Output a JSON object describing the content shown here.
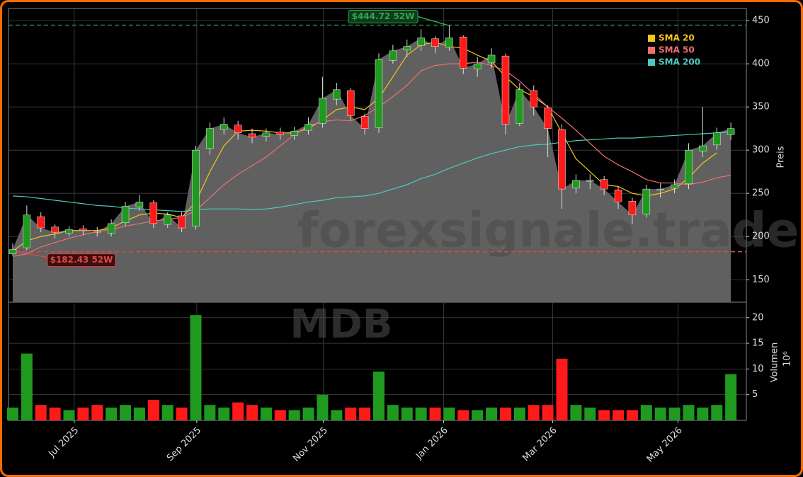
{
  "chart_data": {
    "type": "candlestick",
    "watermark": "forexsignale.trade",
    "symbol": "MDB",
    "y_label": "Preis",
    "x": [
      0.3,
      1.3,
      2.3,
      3.3,
      4.3,
      5.3,
      6.3,
      7.3,
      8.3,
      9.3,
      10.3,
      11.3,
      12.3,
      13.3,
      14.3,
      15.3,
      16.3,
      17.3,
      18.3,
      19.3,
      20.3,
      21.3,
      22.3,
      23.3,
      24.3,
      25.3,
      26.3,
      27.3,
      28.3,
      29.3,
      30.3,
      31.3,
      32.3,
      33.3,
      34.3,
      35.3,
      36.3,
      37.3,
      38.3,
      39.3,
      40.3,
      41.3,
      42.3,
      43.3,
      44.3,
      45.3,
      46.3,
      47.3,
      48.3,
      49.3,
      50.3,
      51.3
    ],
    "open": [
      180,
      187,
      223,
      211,
      204,
      209,
      206,
      204,
      216,
      234,
      239,
      214,
      224,
      212,
      302,
      324,
      329,
      319,
      316,
      321,
      317,
      323,
      331,
      359,
      369,
      339,
      326,
      404,
      416,
      421,
      429,
      419,
      431,
      394,
      401,
      409,
      331,
      369,
      349,
      324,
      256,
      264,
      266,
      254,
      241,
      226,
      254,
      256,
      261,
      299,
      306,
      318
    ],
    "high": [
      192,
      236,
      228,
      214,
      212,
      213,
      211,
      220,
      240,
      248,
      242,
      228,
      228,
      305,
      332,
      338,
      334,
      325,
      325,
      326,
      327,
      338,
      385,
      378,
      372,
      342,
      412,
      422,
      428,
      440,
      432,
      445,
      433,
      408,
      418,
      412,
      378,
      375,
      352,
      330,
      272,
      272,
      270,
      258,
      245,
      260,
      262,
      266,
      308,
      350,
      326,
      332
    ],
    "low": [
      178,
      184,
      205,
      198,
      200,
      202,
      200,
      200,
      212,
      230,
      210,
      210,
      205,
      208,
      295,
      318,
      312,
      308,
      310,
      312,
      312,
      318,
      326,
      352,
      335,
      318,
      320,
      400,
      408,
      415,
      412,
      415,
      388,
      385,
      395,
      318,
      328,
      340,
      292,
      232,
      250,
      255,
      248,
      232,
      215,
      222,
      245,
      250,
      255,
      292,
      300,
      312
    ],
    "close": [
      185,
      225,
      210,
      205,
      208,
      207,
      205,
      215,
      235,
      240,
      215,
      225,
      210,
      300,
      325,
      330,
      320,
      315,
      320,
      318,
      322,
      330,
      360,
      370,
      340,
      325,
      405,
      415,
      420,
      430,
      420,
      430,
      395,
      400,
      410,
      330,
      370,
      350,
      325,
      255,
      265,
      265,
      255,
      240,
      225,
      255,
      255,
      260,
      300,
      305,
      320,
      325
    ],
    "up_color": "#1f9a1f",
    "down_color": "#ff1a1a",
    "series": [
      {
        "name": "SMA 20",
        "color": "#f5c518",
        "values": [
          183,
          195,
          200,
          203,
          207,
          207,
          207,
          210,
          218,
          225,
          227,
          226,
          222,
          240,
          275,
          305,
          322,
          323,
          322,
          320,
          320,
          325,
          335,
          347,
          350,
          347,
          360,
          385,
          410,
          422,
          425,
          420,
          418,
          410,
          403,
          385,
          370,
          362,
          350,
          320,
          290,
          275,
          260,
          258,
          250,
          247,
          250,
          255,
          268,
          285,
          297,
          null
        ]
      },
      {
        "name": "SMA 50",
        "color": "#f07070",
        "values": [
          177,
          180,
          188,
          193,
          198,
          202,
          206,
          208,
          212,
          215,
          218,
          220,
          222,
          230,
          245,
          260,
          272,
          282,
          292,
          305,
          318,
          328,
          333,
          335,
          334,
          340,
          350,
          362,
          375,
          392,
          398,
          400,
          400,
          402,
          398,
          392,
          380,
          365,
          350,
          337,
          323,
          308,
          293,
          283,
          275,
          266,
          262,
          262,
          260,
          263,
          268,
          271
        ]
      },
      {
        "name": "SMA 200",
        "color": "#4fc9c0",
        "values": [
          247,
          246,
          244,
          242,
          240,
          238,
          236,
          235,
          233,
          232,
          231,
          230,
          229,
          231,
          232,
          232,
          232,
          231,
          232,
          234,
          237,
          240,
          242,
          245,
          246,
          247,
          250,
          255,
          260,
          267,
          272,
          279,
          285,
          291,
          296,
          300,
          304,
          306,
          307,
          309,
          311,
          312,
          313,
          314,
          314,
          315,
          316,
          317,
          318,
          319,
          320,
          321
        ]
      }
    ],
    "high_52w": {
      "value": 444.72,
      "label": "$444.72 52W",
      "color": "#2ea84f"
    },
    "low_52w": {
      "value": 182.43,
      "label": "$182.43 52W",
      "color": "#e04848"
    },
    "xlim": [
      0,
      52.4
    ],
    "xticks": [
      {
        "value": 4.67,
        "label": "Jul 2025"
      },
      {
        "value": 13.37,
        "label": "Sep 2025"
      },
      {
        "value": 22.36,
        "label": "Nov 2025"
      },
      {
        "value": 30.9,
        "label": "Jan 2026"
      },
      {
        "value": 38.64,
        "label": "Mar 2026"
      },
      {
        "value": 47.54,
        "label": "May 2026"
      }
    ],
    "ylim": [
      124,
      464
    ],
    "yticks": [
      150,
      200,
      250,
      300,
      350,
      400,
      450
    ],
    "grid": true,
    "volume": {
      "label": "Volumen",
      "offset_label": "10⁶",
      "values": [
        2.5,
        13,
        3,
        2.5,
        2,
        2.5,
        3,
        2.5,
        3,
        2.5,
        4,
        3,
        2.5,
        20.5,
        3,
        2.5,
        3.5,
        3,
        2.5,
        2,
        2,
        2.5,
        5,
        2,
        2.5,
        2.5,
        9.5,
        3,
        2.5,
        2.5,
        2.5,
        2.5,
        2,
        2,
        2.5,
        2.5,
        2.5,
        3,
        3,
        12,
        3,
        2.5,
        2,
        2,
        2,
        3,
        2.5,
        2.5,
        3,
        2.5,
        3,
        9
      ],
      "ylim": [
        0,
        23
      ],
      "yticks": [
        5,
        10,
        15,
        20
      ]
    }
  }
}
